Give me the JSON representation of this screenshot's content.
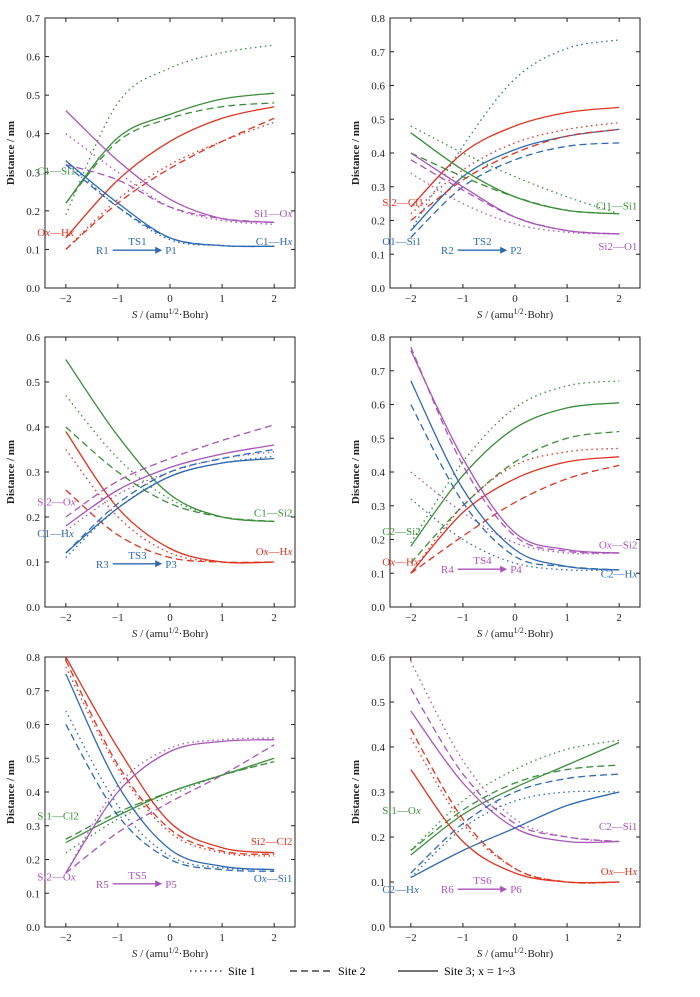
{
  "colors": {
    "green": "#3a8f3a",
    "red": "#e0331f",
    "purple": "#a855b8",
    "blue": "#2e6ab3",
    "axis": "#231f20"
  },
  "legend": {
    "site1": "Site 1",
    "site2": "Site 2",
    "site3": "Site 3; x = 1~3"
  },
  "chart_data": [
    {
      "type": "line",
      "ylabel": "Distance / nm",
      "xlabel": "S / (amu^1/2·Bohr)",
      "xlim": [
        -2.4,
        2.4
      ],
      "ylim": [
        0,
        0.7
      ],
      "yticks": [
        0.0,
        0.1,
        0.2,
        0.3,
        0.4,
        0.5,
        0.6,
        0.7
      ],
      "xticks": [
        -2,
        -1,
        0,
        1,
        2
      ],
      "reaction": {
        "start": "R1",
        "ts": "TS1",
        "end": "P1",
        "color": "blue"
      },
      "series": [
        {
          "label": "C1—Si1",
          "color": "green",
          "sites": [
            [
              0.19,
              0.48,
              0.57,
              0.61,
              0.63
            ],
            [
              0.22,
              0.38,
              0.44,
              0.47,
              0.48
            ],
            [
              0.22,
              0.39,
              0.45,
              0.49,
              0.505
            ]
          ]
        },
        {
          "label": "Ox—Hx",
          "color": "red",
          "sites": [
            [
              0.1,
              0.23,
              0.32,
              0.38,
              0.43
            ],
            [
              0.1,
              0.22,
              0.31,
              0.38,
              0.44
            ],
            [
              0.13,
              0.28,
              0.38,
              0.44,
              0.47
            ]
          ]
        },
        {
          "label": "Si1—Ox",
          "color": "purple",
          "sites": [
            [
              0.4,
              0.3,
              0.21,
              0.175,
              0.165
            ],
            [
              0.32,
              0.28,
              0.21,
              0.18,
              0.17
            ],
            [
              0.46,
              0.33,
              0.23,
              0.18,
              0.17
            ]
          ]
        },
        {
          "label": "C1—Hx",
          "color": "blue",
          "sites": [
            [
              0.33,
              0.21,
              0.125,
              0.11,
              0.108
            ],
            [
              0.32,
              0.21,
              0.13,
              0.11,
              0.108
            ],
            [
              0.33,
              0.22,
              0.13,
              0.11,
              0.108
            ]
          ]
        }
      ]
    },
    {
      "type": "line",
      "ylabel": "Distance / nm",
      "xlabel": "S / (amu^1/2·Bohr)",
      "xlim": [
        -2.4,
        2.4
      ],
      "ylim": [
        0,
        0.8
      ],
      "yticks": [
        0.0,
        0.1,
        0.2,
        0.3,
        0.4,
        0.5,
        0.6,
        0.7,
        0.8
      ],
      "xticks": [
        -2,
        -1,
        0,
        1,
        2
      ],
      "reaction": {
        "start": "R2",
        "ts": "TS2",
        "end": "P2",
        "color": "blue"
      },
      "series": [
        {
          "label": "O1—Si1",
          "color": "blue",
          "sites": [
            [
              0.17,
              0.42,
              0.62,
              0.71,
              0.735
            ],
            [
              0.15,
              0.3,
              0.38,
              0.42,
              0.43
            ],
            [
              0.17,
              0.33,
              0.41,
              0.45,
              0.47
            ]
          ]
        },
        {
          "label": "Si2—Cl1",
          "color": "red",
          "sites": [
            [
              0.22,
              0.35,
              0.43,
              0.47,
              0.49
            ],
            [
              0.2,
              0.32,
              0.4,
              0.45,
              0.47
            ],
            [
              0.24,
              0.4,
              0.48,
              0.52,
              0.535
            ]
          ]
        },
        {
          "label": "Cl1—Si1",
          "color": "green",
          "sites": [
            [
              0.48,
              0.4,
              0.33,
              0.27,
              0.22
            ],
            [
              0.4,
              0.33,
              0.27,
              0.23,
              0.22
            ],
            [
              0.46,
              0.35,
              0.27,
              0.23,
              0.22
            ]
          ]
        },
        {
          "label": "Si2—O1",
          "color": "purple",
          "sites": [
            [
              0.34,
              0.25,
              0.19,
              0.165,
              0.16
            ],
            [
              0.38,
              0.29,
              0.21,
              0.17,
              0.16
            ],
            [
              0.4,
              0.3,
              0.21,
              0.17,
              0.16
            ]
          ]
        }
      ]
    },
    {
      "type": "line",
      "ylabel": "Distance / nm",
      "xlabel": "S / (amu^1/2·Bohr)",
      "xlim": [
        -2.4,
        2.4
      ],
      "ylim": [
        0,
        0.6
      ],
      "yticks": [
        0.0,
        0.1,
        0.2,
        0.3,
        0.4,
        0.5,
        0.6
      ],
      "xticks": [
        -2,
        -1,
        0,
        1,
        2
      ],
      "reaction": {
        "start": "R3",
        "ts": "TS3",
        "end": "P3",
        "color": "blue"
      },
      "series": [
        {
          "label": "C1—Si2",
          "color": "green",
          "sites": [
            [
              0.47,
              0.33,
              0.24,
              0.2,
              0.19
            ],
            [
              0.4,
              0.3,
              0.23,
              0.2,
              0.19
            ],
            [
              0.55,
              0.38,
              0.25,
              0.2,
              0.19
            ]
          ]
        },
        {
          "label": "Ox—Hx",
          "color": "red",
          "sites": [
            [
              0.35,
              0.2,
              0.12,
              0.1,
              0.1
            ],
            [
              0.26,
              0.16,
              0.11,
              0.1,
              0.1
            ],
            [
              0.39,
              0.22,
              0.13,
              0.1,
              0.1
            ]
          ]
        },
        {
          "label": "Si2—Ox",
          "color": "purple",
          "sites": [
            [
              0.17,
              0.25,
              0.3,
              0.33,
              0.345
            ],
            [
              0.2,
              0.28,
              0.33,
              0.37,
              0.405
            ],
            [
              0.18,
              0.26,
              0.31,
              0.34,
              0.36
            ]
          ]
        },
        {
          "label": "C1—Hx",
          "color": "blue",
          "sites": [
            [
              0.11,
              0.22,
              0.29,
              0.32,
              0.335
            ],
            [
              0.12,
              0.23,
              0.3,
              0.33,
              0.35
            ],
            [
              0.12,
              0.22,
              0.29,
              0.32,
              0.33
            ]
          ]
        }
      ]
    },
    {
      "type": "line",
      "ylabel": "Distance / nm",
      "xlabel": "S / (amu^1/2·Bohr)",
      "xlim": [
        -2.4,
        2.4
      ],
      "ylim": [
        0,
        0.8
      ],
      "yticks": [
        0.0,
        0.1,
        0.2,
        0.3,
        0.4,
        0.5,
        0.6,
        0.7,
        0.8
      ],
      "xticks": [
        -2,
        -1,
        0,
        1,
        2
      ],
      "reaction": {
        "start": "R4",
        "ts": "TS4",
        "end": "P4",
        "color": "purple"
      },
      "series": [
        {
          "label": "C2—Si2",
          "color": "green",
          "sites": [
            [
              0.19,
              0.43,
              0.59,
              0.655,
              0.67
            ],
            [
              0.13,
              0.3,
              0.43,
              0.5,
              0.52
            ],
            [
              0.18,
              0.39,
              0.53,
              0.59,
              0.605
            ]
          ]
        },
        {
          "label": "Ox—Hx",
          "color": "red",
          "sites": [
            [
              0.1,
              0.3,
              0.42,
              0.46,
              0.47
            ],
            [
              0.1,
              0.21,
              0.31,
              0.38,
              0.42
            ],
            [
              0.1,
              0.28,
              0.38,
              0.43,
              0.445
            ]
          ]
        },
        {
          "label": "Ox—Si2",
          "color": "purple",
          "sites": [
            [
              0.4,
              0.28,
              0.19,
              0.16,
              0.16
            ],
            [
              0.77,
              0.42,
              0.21,
              0.165,
              0.16
            ],
            [
              0.76,
              0.44,
              0.22,
              0.17,
              0.16
            ]
          ]
        },
        {
          "label": "C2—Hx",
          "color": "blue",
          "sites": [
            [
              0.32,
              0.2,
              0.13,
              0.11,
              0.11
            ],
            [
              0.6,
              0.31,
              0.15,
              0.12,
              0.11
            ],
            [
              0.67,
              0.35,
              0.17,
              0.12,
              0.11
            ]
          ]
        }
      ]
    },
    {
      "type": "line",
      "ylabel": "Distance / nm",
      "xlabel": "S / (amu^1/2·Bohr)",
      "xlim": [
        -2.4,
        2.4
      ],
      "ylim": [
        0,
        0.8
      ],
      "yticks": [
        0.0,
        0.1,
        0.2,
        0.3,
        0.4,
        0.5,
        0.6,
        0.7,
        0.8
      ],
      "xticks": [
        -2,
        -1,
        0,
        1,
        2
      ],
      "reaction": {
        "start": "R5",
        "ts": "TS5",
        "end": "P5",
        "color": "purple"
      },
      "series": [
        {
          "label": "Si1—Cl2",
          "color": "green",
          "sites": [
            [
              0.22,
              0.32,
              0.39,
              0.45,
              0.49
            ],
            [
              0.26,
              0.34,
              0.4,
              0.45,
              0.49
            ],
            [
              0.25,
              0.33,
              0.4,
              0.45,
              0.5
            ]
          ]
        },
        {
          "label": "Si2—Cl2",
          "color": "red",
          "sites": [
            [
              0.77,
              0.47,
              0.28,
              0.22,
              0.21
            ],
            [
              0.79,
              0.48,
              0.29,
              0.225,
              0.215
            ],
            [
              0.8,
              0.53,
              0.31,
              0.235,
              0.22
            ]
          ]
        },
        {
          "label": "Si2—Ox",
          "color": "purple",
          "sites": [
            [
              0.16,
              0.42,
              0.53,
              0.555,
              0.56
            ],
            [
              0.16,
              0.28,
              0.37,
              0.45,
              0.54
            ],
            [
              0.16,
              0.4,
              0.52,
              0.55,
              0.555
            ]
          ]
        },
        {
          "label": "Ox—Si1",
          "color": "blue",
          "sites": [
            [
              0.64,
              0.36,
              0.21,
              0.175,
              0.17
            ],
            [
              0.6,
              0.33,
              0.2,
              0.17,
              0.165
            ],
            [
              0.75,
              0.42,
              0.23,
              0.18,
              0.17
            ]
          ]
        }
      ]
    },
    {
      "type": "line",
      "ylabel": "Distance / nm",
      "xlabel": "S / (amu^1/2·Bohr)",
      "xlim": [
        -2.4,
        2.4
      ],
      "ylim": [
        0,
        0.6
      ],
      "yticks": [
        0.0,
        0.1,
        0.2,
        0.3,
        0.4,
        0.5,
        0.6
      ],
      "xticks": [
        -2,
        -1,
        0,
        1,
        2
      ],
      "reaction": {
        "start": "R6",
        "ts": "TS6",
        "end": "P6",
        "color": "purple"
      },
      "series": [
        {
          "label": "Si1—Ox",
          "color": "green",
          "sites": [
            [
              0.17,
              0.28,
              0.35,
              0.395,
              0.415
            ],
            [
              0.17,
              0.26,
              0.32,
              0.35,
              0.36
            ],
            [
              0.16,
              0.25,
              0.31,
              0.36,
              0.41
            ]
          ]
        },
        {
          "label": "Ox—Hx",
          "color": "red",
          "sites": [
            [
              0.42,
              0.23,
              0.13,
              0.1,
              0.1
            ],
            [
              0.44,
              0.24,
              0.13,
              0.1,
              0.1
            ],
            [
              0.35,
              0.19,
              0.12,
              0.1,
              0.1
            ]
          ]
        },
        {
          "label": "C2—Si1",
          "color": "purple",
          "sites": [
            [
              0.59,
              0.37,
              0.24,
              0.2,
              0.19
            ],
            [
              0.53,
              0.34,
              0.23,
              0.2,
              0.19
            ],
            [
              0.48,
              0.32,
              0.22,
              0.19,
              0.19
            ]
          ]
        },
        {
          "label": "C2—Hx",
          "color": "blue",
          "sites": [
            [
              0.11,
              0.22,
              0.28,
              0.3,
              0.3
            ],
            [
              0.12,
              0.23,
              0.3,
              0.33,
              0.34
            ],
            [
              0.11,
              0.17,
              0.22,
              0.27,
              0.3
            ]
          ]
        }
      ]
    }
  ]
}
